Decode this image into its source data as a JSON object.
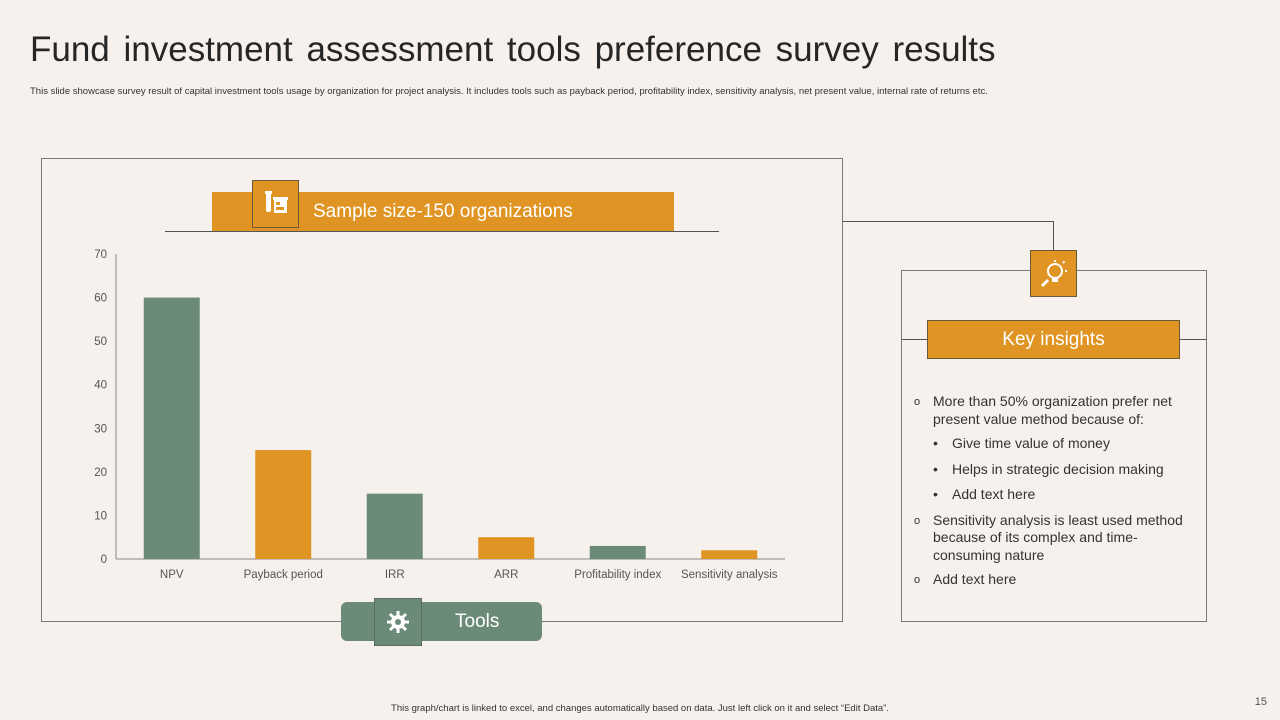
{
  "title": "Fund investment assessment tools preference survey results",
  "subtitle": "This slide showcase survey result of capital investment tools usage by organization for project analysis. It includes tools such as payback period, profitability index, sensitivity analysis, net present value, internal rate of returns etc.",
  "sample_banner": "Sample size-150 organizations",
  "tools_label": "Tools",
  "key_insights": {
    "heading": "Key insights",
    "points": [
      {
        "text": "More than 50% organization prefer net present value method because of:",
        "sub": [
          "Give time value of money",
          "Helps in strategic decision making",
          "Add text here"
        ]
      },
      {
        "text": "Sensitivity analysis is least used method because of its complex and time-consuming nature"
      },
      {
        "text": "Add text here"
      }
    ]
  },
  "footer": "This graph/chart is linked to excel, and changes automatically based on data. Just left click on it and select “Edit Data”.",
  "page_number": "15",
  "colors": {
    "green": "#6b8a78",
    "orange": "#df9423",
    "background": "#f6f1ec"
  },
  "icons": [
    "lab-flask-icon",
    "lightbulb-gear-icon",
    "gear-tools-icon"
  ],
  "chart_data": {
    "type": "bar",
    "categories": [
      "NPV",
      "Payback period",
      "IRR",
      "ARR",
      "Profitability index",
      "Sensitivity analysis"
    ],
    "values": [
      60,
      25,
      15,
      5,
      3,
      2
    ],
    "bar_colors": [
      "#6b8a78",
      "#df9423",
      "#6b8a78",
      "#df9423",
      "#6b8a78",
      "#df9423"
    ],
    "yticks": [
      "0",
      "10",
      "20",
      "30",
      "40",
      "50",
      "60",
      "70"
    ],
    "ylim": [
      0,
      70
    ],
    "xlabel": "Tools",
    "ylabel": ""
  }
}
